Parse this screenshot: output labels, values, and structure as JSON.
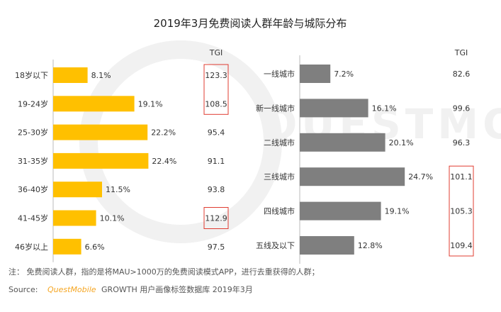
{
  "chart_data": [
    {
      "type": "bar",
      "orientation": "horizontal",
      "title": "2019年3月免费阅读人群年龄与城际分布",
      "categories": [
        "18岁以下",
        "19-24岁",
        "25-30岁",
        "31-35岁",
        "36-40岁",
        "41-45岁",
        "46岁以上"
      ],
      "values": [
        8.1,
        19.1,
        22.2,
        22.4,
        11.5,
        10.1,
        6.6
      ],
      "value_labels": [
        "8.1%",
        "19.1%",
        "22.2%",
        "22.4%",
        "11.5%",
        "10.1%",
        "6.6%"
      ],
      "tgi_header": "TGI",
      "tgi": [
        "123.3",
        "108.5",
        "95.4",
        "91.1",
        "93.8",
        "112.9",
        "97.5"
      ],
      "tgi_highlight": [
        true,
        true,
        false,
        false,
        false,
        true,
        false
      ],
      "xlim": [
        0,
        100
      ],
      "color": "#ffc000"
    },
    {
      "type": "bar",
      "orientation": "horizontal",
      "categories": [
        "一线城市",
        "新一线城市",
        "二线城市",
        "三线城市",
        "四线城市",
        "五线及以下"
      ],
      "values": [
        7.2,
        16.1,
        20.1,
        24.7,
        19.1,
        12.8
      ],
      "value_labels": [
        "7.2%",
        "16.1%",
        "20.1%",
        "24.7%",
        "19.1%",
        "12.8%"
      ],
      "tgi_header": "TGI",
      "tgi": [
        "82.6",
        "99.6",
        "96.3",
        "101.1",
        "105.3",
        "109.4"
      ],
      "tgi_highlight": [
        false,
        false,
        false,
        true,
        true,
        true
      ],
      "xlim": [
        0,
        100
      ],
      "color": "#7f7f7f"
    }
  ],
  "note": "注：  免费阅读人群，指的是将MAU>1000万的免费阅读模式APP，进行去重获得的人群；",
  "source": {
    "label": "Source:",
    "brand": "QuestMobile",
    "text": "GROWTH 用户画像标签数据库 2019年3月"
  },
  "watermark": "QUESTMOBILE",
  "colors": {
    "highlight_box": "#e03c31",
    "brand": "#f5a623",
    "text": "#333333"
  }
}
